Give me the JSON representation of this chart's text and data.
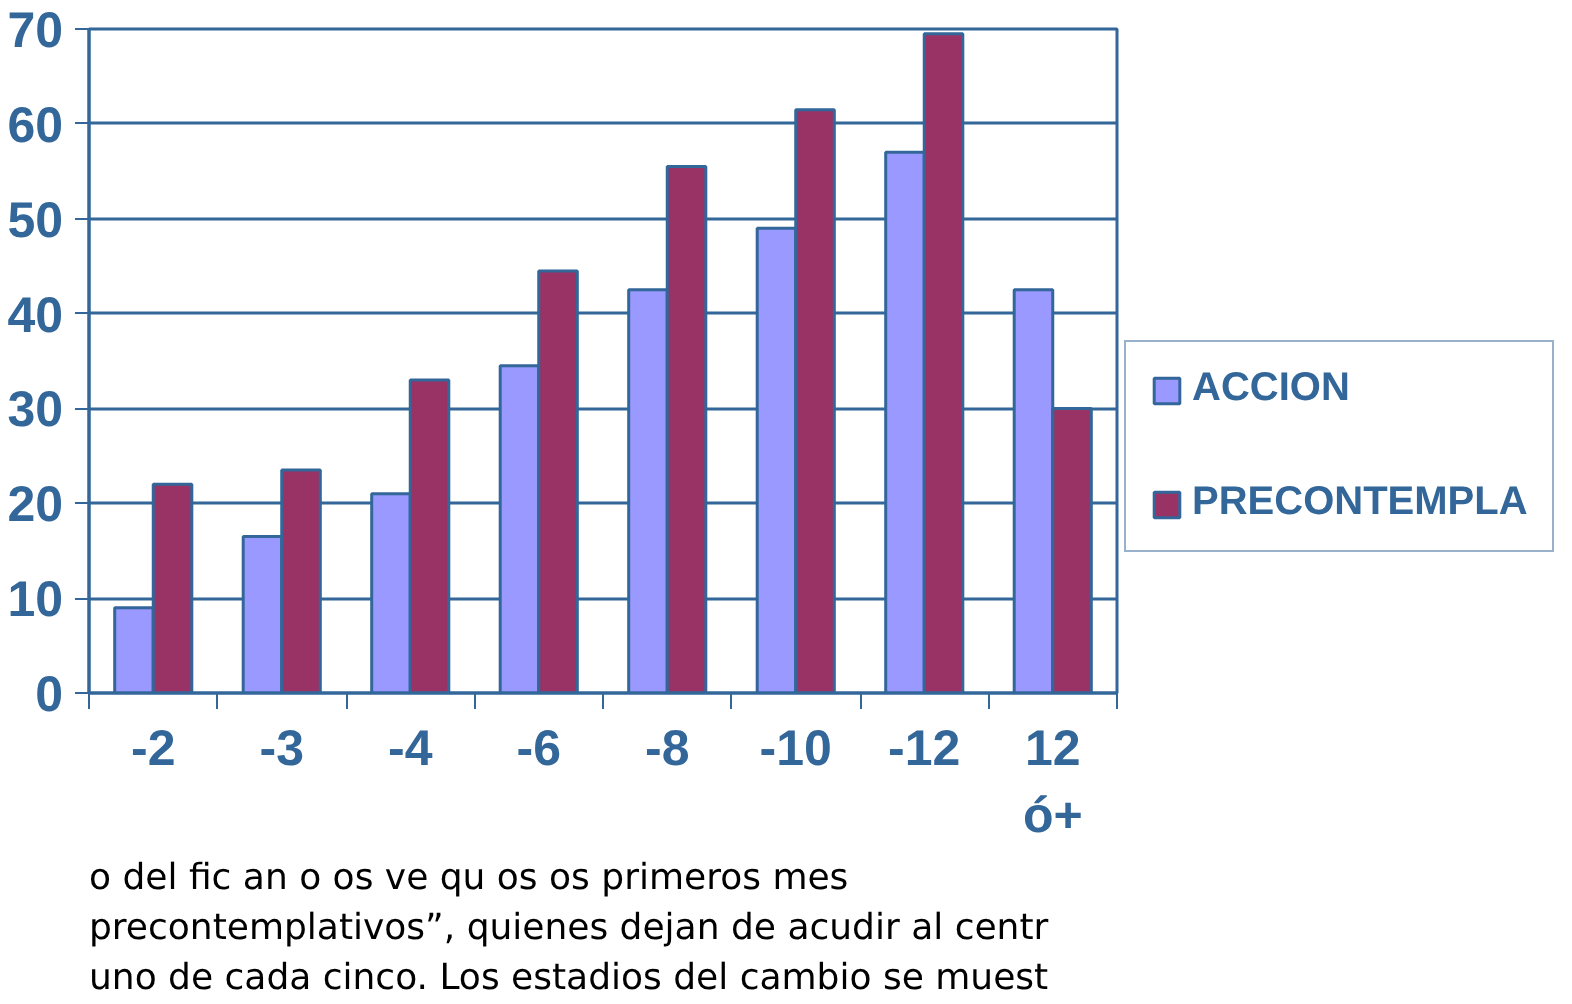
{
  "chart_data": {
    "type": "bar",
    "categories": [
      "-2",
      "-3",
      "-4",
      "-6",
      "-8",
      "-10",
      "-12",
      "12 ó+"
    ],
    "series": [
      {
        "name": "ACCION",
        "color": "#9999ff",
        "values": [
          9,
          16.5,
          21,
          34.5,
          42.5,
          49,
          57,
          42.5
        ]
      },
      {
        "name": "PRECONTEMPLA",
        "color": "#993366",
        "values": [
          22,
          23.5,
          33,
          44.5,
          55.5,
          61.5,
          69.5,
          30
        ]
      }
    ],
    "ylim": [
      0,
      70
    ],
    "yticks": [
      0,
      10,
      20,
      30,
      40,
      50,
      60,
      70
    ],
    "grid": "y",
    "legend": "right",
    "annotations": [
      "o del fic an o os ve qu os os primeros mes",
      "precontemplativos”, quienes dejan de acudir al centr",
      "uno de cada cinco. Los estadios del cambio se muest"
    ]
  }
}
